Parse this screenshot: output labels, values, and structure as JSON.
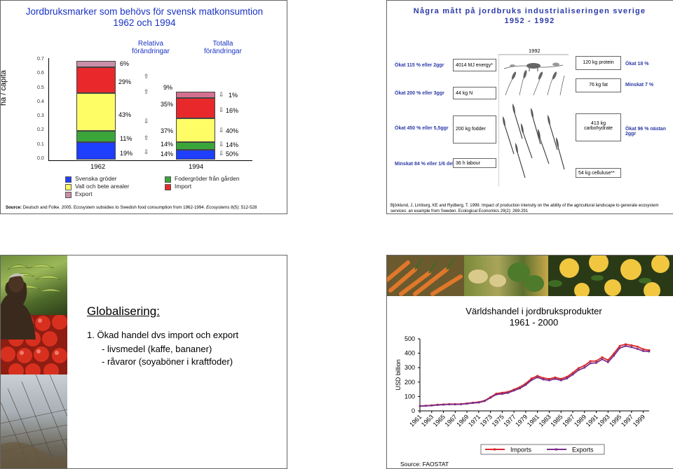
{
  "slide1": {
    "title_line1": "Jordbruksmarker som behövs för svensk matkonsumtion",
    "title_line2": "1962 och 1994",
    "ylabel": "ha / capita",
    "y_ticks": [
      "0.7",
      "0.6",
      "0.5",
      "0.4",
      "0.3",
      "0.2",
      "0.1",
      "0.0"
    ],
    "header_relative": "Relativa förändringar",
    "header_total": "Totalla förändringar",
    "year_1962": "1962",
    "year_1994": "1994",
    "pct_1962": [
      "6%",
      "29%",
      "43%",
      "11%",
      "19%"
    ],
    "pct_relative": [
      "9%",
      "35%",
      "37%",
      "14%",
      "14%"
    ],
    "pct_total": [
      "1%",
      "16%",
      "40%",
      "14%",
      "50%"
    ],
    "legend_left": [
      "Svenska gröder",
      "Vall och bete arealer",
      "Export"
    ],
    "legend_right": [
      "Fodergröder från gården",
      "Import"
    ],
    "source_bold": "Source:",
    "source_text": " Deutsch and Folke. 2005. Ecosystem subsidies to Swedish food consumption from 1962-1994. ",
    "source_journal": "Ecosystems",
    "source_end": " 8(5): 512-528",
    "colors": {
      "svenska": "#1f3fff",
      "vall": "#fffd66",
      "export": "#c98fa8",
      "foder": "#3aa63a",
      "import": "#e8282b",
      "pink": "#d47090"
    }
  },
  "slide2": {
    "title_line1": "Några mått på jordbruks industrialiseringen  sverige",
    "title_line2": "1952 - 1992",
    "year": "1992",
    "left_labels": [
      "Ökat 115 % eller 2ggr",
      "Ökat 200 % eller 3ggr",
      "Ökat 450 % eller 5,5ggr",
      "Minskat 84 % eller 1/6 del"
    ],
    "boxes_left": [
      "4014 MJ energy*",
      "44 kg N",
      "200 kg fodder",
      "36 h labour"
    ],
    "boxes_right": [
      "120 kg protein",
      "76 kg fat",
      "413 kg carbohydrate",
      "54 kg celluluse**"
    ],
    "right_labels": [
      "Ökat 18 %",
      "Minskat 7 %",
      "Ökat 96 % nästan 2ggr"
    ],
    "source": "Björklund, J, Limburg, KE and Rydberg, T. 1999. Impact of production intensity on the ability of the agricultural landscape to generate ecosystem services: an example from Sweden. Ecological Economics 29(2): 269-291"
  },
  "slide3": {
    "title": "Globalisering:",
    "point1": "1. Ökad handel dvs import och export",
    "sub1": "- livsmedel (kaffe, bananer)",
    "sub2": "- råvaror (soyaböner i kraftfoder)"
  },
  "slide4": {
    "title_line1": "Världshandel i jordbruksprodukter",
    "title_line2": "1961 - 2000",
    "source": "Source: FAOSTAT",
    "chart_data": {
      "type": "line",
      "title": "Världshandel i jordbruksprodukter 1961 - 2000",
      "ylabel": "USD billion",
      "xlabel": "",
      "ylim": [
        0,
        500
      ],
      "y_ticks": [
        0,
        100,
        200,
        300,
        400,
        500
      ],
      "x_ticks": [
        "1961",
        "1963",
        "1965",
        "1967",
        "1969",
        "1971",
        "1973",
        "1975",
        "1977",
        "1979",
        "1981",
        "1983",
        "1985",
        "1987",
        "1989",
        "1991",
        "1993",
        "1995",
        "1997",
        "1999"
      ],
      "x": [
        1961,
        1962,
        1963,
        1964,
        1965,
        1966,
        1967,
        1968,
        1969,
        1970,
        1971,
        1972,
        1973,
        1974,
        1975,
        1976,
        1977,
        1978,
        1979,
        1980,
        1981,
        1982,
        1983,
        1984,
        1985,
        1986,
        1987,
        1988,
        1989,
        1990,
        1991,
        1992,
        1993,
        1994,
        1995,
        1996,
        1997,
        1998,
        1999,
        2000
      ],
      "series": [
        {
          "name": "Imports",
          "color": "#d9282b",
          "values": [
            34,
            36,
            39,
            43,
            45,
            47,
            47,
            48,
            52,
            57,
            61,
            71,
            95,
            120,
            126,
            132,
            148,
            165,
            190,
            225,
            243,
            228,
            222,
            232,
            222,
            236,
            264,
            297,
            314,
            345,
            346,
            372,
            352,
            398,
            451,
            462,
            455,
            446,
            428,
            421
          ]
        },
        {
          "name": "Exports",
          "color": "#7a2f8a",
          "values": [
            33,
            35,
            37,
            41,
            43,
            45,
            45,
            46,
            50,
            55,
            58,
            68,
            91,
            114,
            118,
            125,
            141,
            156,
            180,
            214,
            233,
            218,
            212,
            222,
            212,
            225,
            252,
            284,
            300,
            330,
            333,
            358,
            338,
            383,
            436,
            450,
            442,
            430,
            415,
            412
          ]
        }
      ],
      "legend": [
        "Imports",
        "Exports"
      ]
    }
  }
}
